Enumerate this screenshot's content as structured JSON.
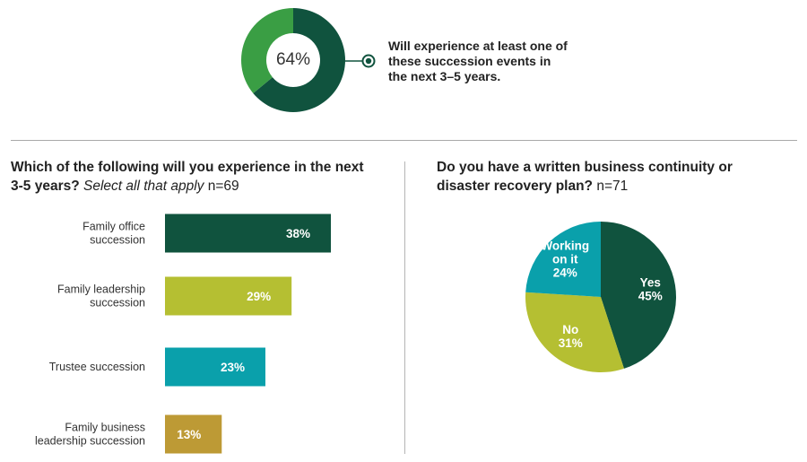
{
  "highlight": {
    "value": 64,
    "center_label": "64%",
    "text": "Will experience at least one of these succession events in the next 3–5 years.",
    "colors": {
      "main": "#10533e",
      "rest": "#3a9e44"
    }
  },
  "questions": {
    "left": {
      "text": "Which of the following will you experience in the next 3-5 years?",
      "qualifier": "Select all that apply",
      "n": "n=69"
    },
    "right": {
      "text": "Do you have a written business continuity or disaster recovery plan?",
      "n": "n=71"
    }
  },
  "chart_data": [
    {
      "type": "bar",
      "orientation": "horizontal",
      "categories": [
        [
          "Family office",
          "succession"
        ],
        [
          "Family leadership",
          "succession"
        ],
        [
          "Trustee succession"
        ],
        [
          "Family business",
          "leadership succession"
        ]
      ],
      "values": [
        38,
        29,
        23,
        13
      ],
      "value_labels": [
        "38%",
        "29%",
        "23%",
        "13%"
      ],
      "colors": [
        "#10533e",
        "#b5bf32",
        "#0aa0ab",
        "#bd9a35"
      ],
      "xlim": [
        0,
        100
      ]
    },
    {
      "type": "pie",
      "labels": [
        [
          "Yes"
        ],
        [
          "No"
        ],
        [
          "Working",
          "on it"
        ]
      ],
      "values": [
        45,
        31,
        24
      ],
      "value_labels": [
        "45%",
        "31%",
        "24%"
      ],
      "colors": [
        "#10533e",
        "#b5bf32",
        "#0aa0ab"
      ]
    }
  ]
}
